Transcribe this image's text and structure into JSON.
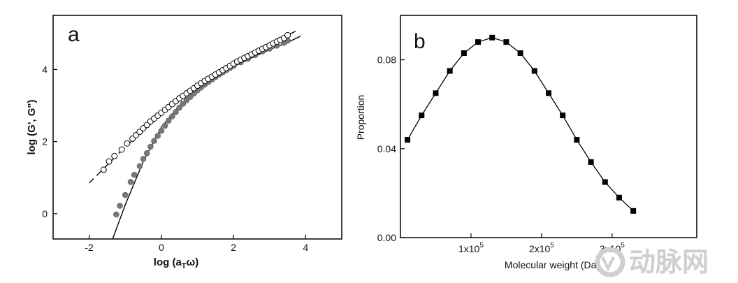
{
  "chart_data": [
    {
      "type": "scatter",
      "panel_label": "a",
      "xlabel": "log (a",
      "xlabel_sub": "T",
      "xlabel_tail": "ω)",
      "ylabel": "log (G', G\")",
      "xlim": [
        -3,
        5
      ],
      "ylim": [
        -0.7,
        5.5
      ],
      "xticks": [
        -2,
        0,
        2,
        4
      ],
      "yticks": [
        0,
        2,
        4
      ],
      "grid": false,
      "series": [
        {
          "marker": "open-circle",
          "x": [
            -1.6,
            -1.45,
            -1.3,
            -1.1,
            -0.95,
            -0.8,
            -0.7,
            -0.6,
            -0.5,
            -0.4,
            -0.3,
            -0.2,
            -0.1,
            0.0,
            0.1,
            0.2,
            0.3,
            0.4,
            0.5,
            0.6,
            0.7,
            0.8,
            0.9,
            1.0,
            1.1,
            1.2,
            1.3,
            1.4,
            1.5,
            1.6,
            1.7,
            1.8,
            1.9,
            2.0,
            2.1,
            2.2,
            2.3,
            2.4,
            2.5,
            2.6,
            2.7,
            2.8,
            2.9,
            3.0,
            3.1,
            3.2,
            3.3,
            3.4,
            3.5
          ],
          "y": [
            1.22,
            1.45,
            1.6,
            1.78,
            1.95,
            2.08,
            2.18,
            2.27,
            2.37,
            2.46,
            2.56,
            2.64,
            2.72,
            2.8,
            2.88,
            2.96,
            3.04,
            3.12,
            3.2,
            3.27,
            3.34,
            3.41,
            3.48,
            3.55,
            3.62,
            3.68,
            3.74,
            3.8,
            3.86,
            3.92,
            3.98,
            4.04,
            4.1,
            4.16,
            4.22,
            4.27,
            4.32,
            4.37,
            4.42,
            4.47,
            4.52,
            4.57,
            4.62,
            4.67,
            4.72,
            4.77,
            4.82,
            4.87,
            4.95
          ]
        },
        {
          "marker": "filled-circle",
          "x": [
            -1.25,
            -1.15,
            -1.0,
            -0.85,
            -0.75,
            -0.6,
            -0.5,
            -0.4,
            -0.3,
            -0.2,
            -0.1,
            0.0,
            0.1,
            0.2,
            0.3,
            0.4,
            0.5,
            0.6,
            0.7,
            0.8,
            0.9,
            1.0,
            1.1,
            1.2,
            1.3,
            1.4,
            1.5,
            1.6,
            1.7,
            1.8,
            1.9,
            2.0,
            2.2,
            2.4,
            2.6,
            2.8,
            3.0,
            3.2,
            3.4,
            3.5
          ],
          "y": [
            -0.02,
            0.22,
            0.52,
            0.88,
            1.08,
            1.32,
            1.52,
            1.68,
            1.86,
            2.02,
            2.16,
            2.3,
            2.44,
            2.58,
            2.7,
            2.82,
            2.94,
            3.05,
            3.15,
            3.24,
            3.33,
            3.42,
            3.5,
            3.58,
            3.65,
            3.72,
            3.79,
            3.86,
            3.92,
            3.98,
            4.04,
            4.1,
            4.2,
            4.3,
            4.4,
            4.5,
            4.58,
            4.66,
            4.74,
            4.8
          ]
        },
        {
          "line": "dashed",
          "x": [
            -2.0,
            -1.0,
            0.0,
            1.0,
            2.0,
            3.0,
            3.8
          ],
          "y": [
            0.85,
            1.85,
            2.75,
            3.5,
            4.15,
            4.7,
            5.1
          ]
        },
        {
          "line": "solid",
          "x": [
            -1.35,
            -1.0,
            -0.5,
            0.0,
            0.5,
            1.0,
            1.5,
            2.0,
            2.5,
            3.0,
            3.5,
            3.85
          ],
          "y": [
            -0.7,
            0.25,
            1.45,
            2.4,
            3.0,
            3.45,
            3.8,
            4.08,
            4.32,
            4.55,
            4.75,
            4.92
          ]
        }
      ]
    },
    {
      "type": "line",
      "panel_label": "b",
      "xlabel": "Molecular weight (Da)",
      "ylabel": "Proportion",
      "xlim": [
        0,
        420000
      ],
      "ylim": [
        0,
        0.1
      ],
      "xticks": [
        {
          "value": 100000,
          "mant": "1x10",
          "exp": "5"
        },
        {
          "value": 200000,
          "mant": "2x10",
          "exp": "5"
        },
        {
          "value": 300000,
          "mant": "3x10",
          "exp": "5"
        }
      ],
      "yticks": [
        {
          "value": 0.0,
          "label": "0.00"
        },
        {
          "value": 0.04,
          "label": "0.04"
        },
        {
          "value": 0.08,
          "label": "0.08"
        }
      ],
      "grid": false,
      "series": [
        {
          "marker": "filled-square",
          "x": [
            10000,
            30000,
            50000,
            70000,
            90000,
            110000,
            130000,
            150000,
            170000,
            190000,
            210000,
            230000,
            250000,
            270000,
            290000,
            310000,
            330000
          ],
          "y": [
            0.044,
            0.055,
            0.065,
            0.075,
            0.083,
            0.088,
            0.09,
            0.088,
            0.083,
            0.075,
            0.065,
            0.055,
            0.044,
            0.034,
            0.025,
            0.018,
            0.012
          ]
        }
      ]
    }
  ],
  "watermark": {
    "text": "动脉网",
    "color": "#cfcfcf"
  }
}
